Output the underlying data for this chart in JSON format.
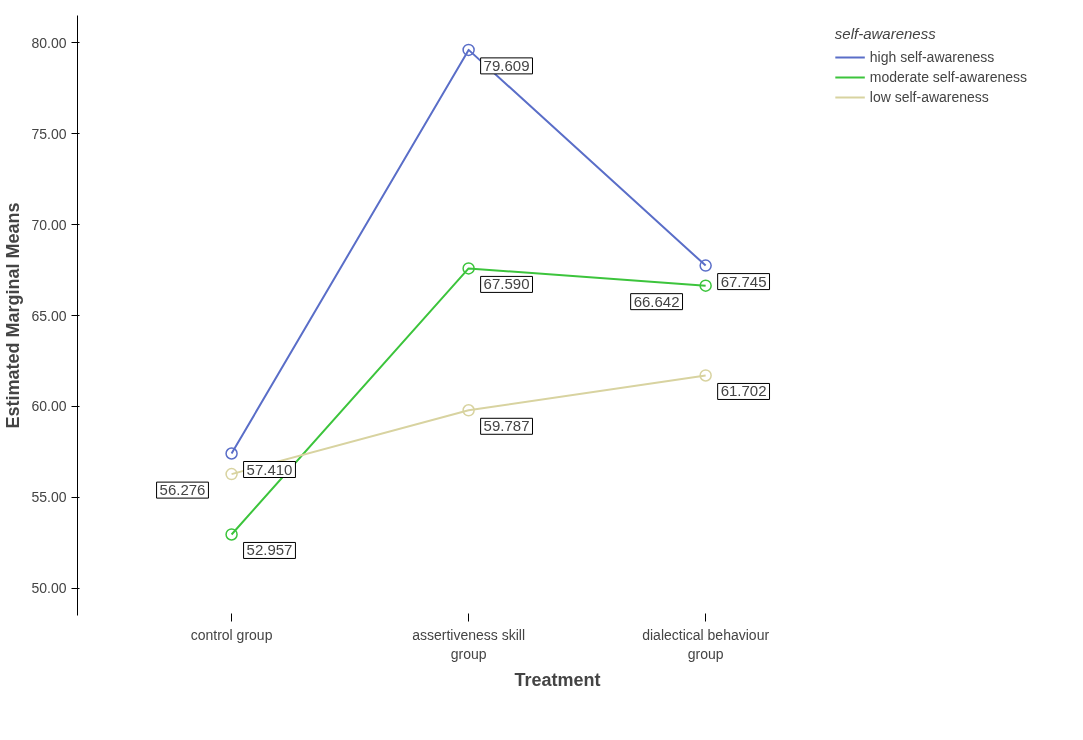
{
  "chart_data": {
    "type": "line",
    "xlabel": "Treatment",
    "ylabel": "Estimated Marginal Means",
    "legend_title": "self-awareness",
    "categories": [
      "control group",
      "assertiveness skill group",
      "dialectical behaviour group"
    ],
    "series": [
      {
        "name": "high self-awareness",
        "color": "#5a6ec8",
        "values": [
          57.41,
          79.609,
          67.745
        ],
        "value_labels": [
          "57.410",
          "79.609",
          "67.745"
        ]
      },
      {
        "name": "moderate self-awareness",
        "color": "#3cc43c",
        "values": [
          52.957,
          67.59,
          66.642
        ],
        "value_labels": [
          "52.957",
          "67.590",
          "66.642"
        ]
      },
      {
        "name": "low self-awareness",
        "color": "#d8d3a0",
        "values": [
          56.276,
          59.787,
          61.702
        ],
        "value_labels": [
          "56.276",
          "59.787",
          "61.702"
        ]
      }
    ],
    "ylim": [
      48.5,
      81.5
    ],
    "yticks": [
      {
        "value": 50,
        "label": "50.00"
      },
      {
        "value": 55,
        "label": "55.00"
      },
      {
        "value": 60,
        "label": "60.00"
      },
      {
        "value": 65,
        "label": "65.00"
      },
      {
        "value": 70,
        "label": "70.00"
      },
      {
        "value": 75,
        "label": "75.00"
      },
      {
        "value": 80,
        "label": "80.00"
      }
    ],
    "marker": "circle",
    "grid": false,
    "legend": "top right"
  }
}
